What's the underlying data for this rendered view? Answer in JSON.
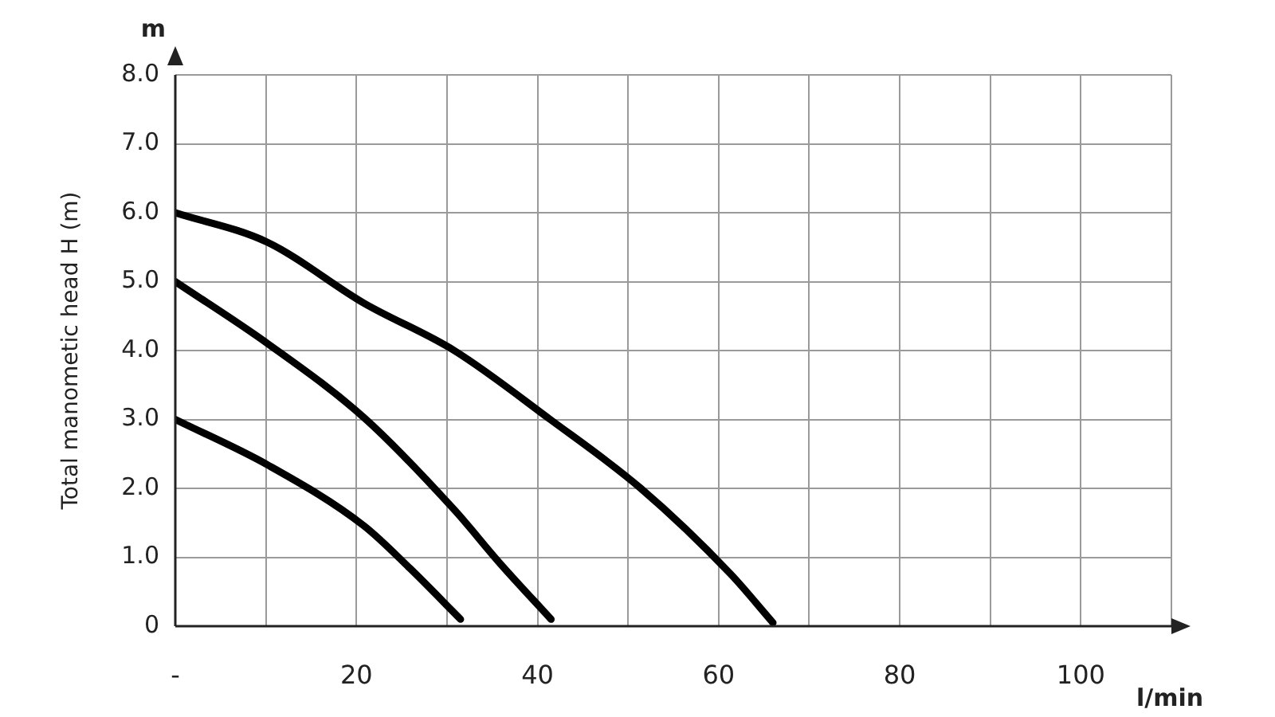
{
  "chart_data": {
    "type": "line",
    "ylabel": "Total manometic head H (m)",
    "xlabel": "l/min",
    "annotations": [
      "m"
    ],
    "xlim": [
      0,
      110
    ],
    "xticks": [
      {
        "value": 0,
        "label": "-"
      },
      {
        "value": 10,
        "label": null
      },
      20,
      {
        "value": 30,
        "label": null
      },
      40,
      {
        "value": 50,
        "label": null
      },
      60,
      {
        "value": 70,
        "label": null
      },
      80,
      {
        "value": 90,
        "label": null
      },
      100,
      {
        "value": 110,
        "label": null
      }
    ],
    "ylim": [
      0,
      8
    ],
    "yticks": [
      0,
      {
        "value": 1,
        "label": "1.0"
      },
      {
        "value": 2,
        "label": "2.0"
      },
      {
        "value": 3,
        "label": "3.0"
      },
      {
        "value": 4,
        "label": "4.0"
      },
      {
        "value": 5,
        "label": "5.0"
      },
      {
        "value": 6,
        "label": "6.0"
      },
      {
        "value": 7,
        "label": "7.0"
      },
      {
        "value": 8,
        "label": "8.0"
      }
    ],
    "grid": true,
    "marker": "none",
    "line_style": "solid",
    "series": [
      {
        "color": "#000000",
        "x": [
          0,
          10.2,
          20.8,
          25.9,
          31.5
        ],
        "values": [
          3.0,
          2.34,
          1.46,
          0.84,
          0.1
        ]
      },
      {
        "color": "#000000",
        "x": [
          0,
          10.2,
          20.8,
          30.8,
          35.8,
          41.5
        ],
        "values": [
          5.0,
          4.1,
          3.03,
          1.69,
          0.92,
          0.1
        ]
      },
      {
        "color": "#000000",
        "x": [
          0,
          10.2,
          20.8,
          30.8,
          41.4,
          51.4,
          61.3,
          66
        ],
        "values": [
          6.0,
          5.57,
          4.69,
          4.0,
          3.0,
          2.0,
          0.76,
          0.05
        ]
      }
    ]
  }
}
